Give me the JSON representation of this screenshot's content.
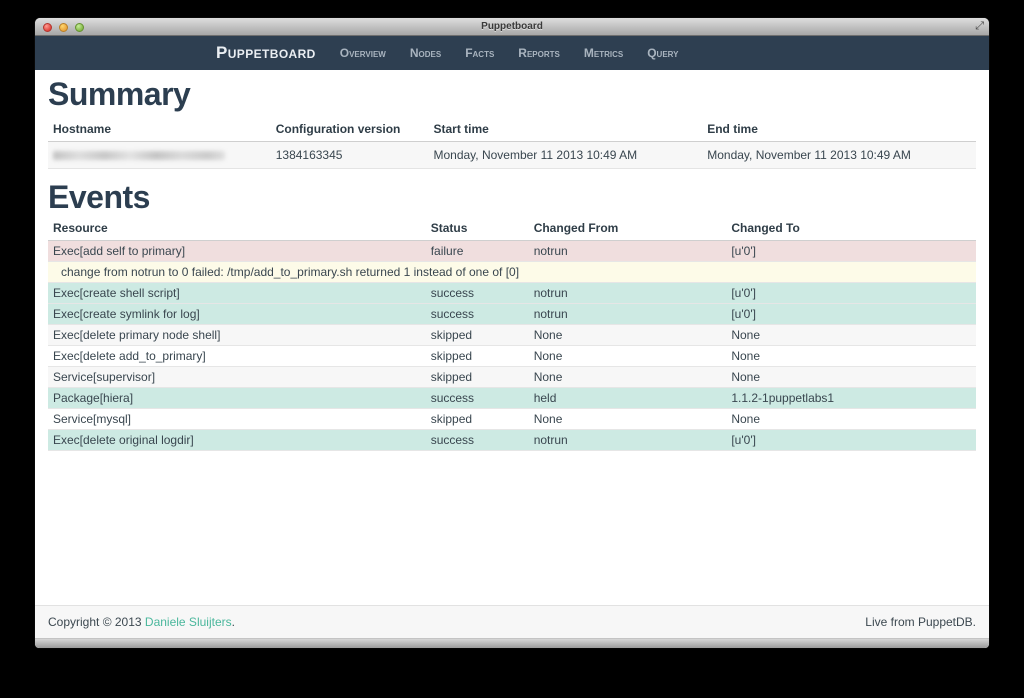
{
  "window": {
    "title": "Puppetboard",
    "resize_glyph": "⤢"
  },
  "navbar": {
    "brand": "Puppetboard",
    "items": [
      {
        "label": "Overview"
      },
      {
        "label": "Nodes"
      },
      {
        "label": "Facts"
      },
      {
        "label": "Reports"
      },
      {
        "label": "Metrics"
      },
      {
        "label": "Query"
      }
    ]
  },
  "summary": {
    "heading": "Summary",
    "columns": [
      "Hostname",
      "Configuration version",
      "Start time",
      "End time"
    ],
    "row": {
      "configuration_version": "1384163345",
      "start_time": "Monday, November 11 2013 10:49 AM",
      "end_time": "Monday, November 11 2013 10:49 AM"
    }
  },
  "events": {
    "heading": "Events",
    "columns": [
      "Resource",
      "Status",
      "Changed From",
      "Changed To"
    ],
    "rows": [
      {
        "type": "failure",
        "resource": "Exec[add self to primary]",
        "status": "failure",
        "changed_from": "notrun",
        "changed_to": "[u'0']"
      },
      {
        "type": "message",
        "message": "change from notrun to 0 failed: /tmp/add_to_primary.sh returned 1 instead of one of [0]"
      },
      {
        "type": "success",
        "resource": "Exec[create shell script]",
        "status": "success",
        "changed_from": "notrun",
        "changed_to": "[u'0']"
      },
      {
        "type": "success",
        "resource": "Exec[create symlink for log]",
        "status": "success",
        "changed_from": "notrun",
        "changed_to": "[u'0']"
      },
      {
        "type": "stripe",
        "resource": "Exec[delete primary node shell]",
        "status": "skipped",
        "changed_from": "None",
        "changed_to": "None"
      },
      {
        "type": "plain",
        "resource": "Exec[delete add_to_primary]",
        "status": "skipped",
        "changed_from": "None",
        "changed_to": "None"
      },
      {
        "type": "stripe",
        "resource": "Service[supervisor]",
        "status": "skipped",
        "changed_from": "None",
        "changed_to": "None"
      },
      {
        "type": "success",
        "resource": "Package[hiera]",
        "status": "success",
        "changed_from": "held",
        "changed_to": "1.1.2-1puppetlabs1"
      },
      {
        "type": "plain",
        "resource": "Service[mysql]",
        "status": "skipped",
        "changed_from": "None",
        "changed_to": "None"
      },
      {
        "type": "success",
        "resource": "Exec[delete original logdir]",
        "status": "success",
        "changed_from": "notrun",
        "changed_to": "[u'0']"
      }
    ]
  },
  "footer": {
    "copyright_prefix": "Copyright © 2013 ",
    "copyright_link": "Daniele Sluijters",
    "copyright_suffix": ".",
    "right_text": "Live from PuppetDB."
  },
  "colors": {
    "navbar-bg": "#2e3f51",
    "heading": "#2c3e50",
    "failure-bg": "#f0dede",
    "message-bg": "#fdfbe8",
    "success-bg": "#cdeae3",
    "stripe-bg": "#f7f7f7",
    "link": "#4ab79c"
  }
}
